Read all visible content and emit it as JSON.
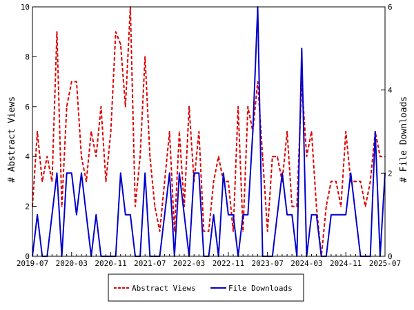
{
  "chart_data": {
    "type": "line",
    "title": "",
    "xlabel": "",
    "ylabel": "# Abstract Views",
    "y2label": "# File Downloads",
    "ylim": [
      0,
      10
    ],
    "y2lim": [
      0,
      6
    ],
    "yticks": [
      "0",
      "2",
      "4",
      "6",
      "8",
      "10"
    ],
    "y2ticks": [
      "0",
      "2",
      "4",
      "6"
    ],
    "xticks": [
      "2019-07",
      "2020-03",
      "2020-11",
      "2021-07",
      "2022-03",
      "2022-11",
      "2023-07",
      "2024-03",
      "2024-11",
      "2025-07"
    ],
    "x_start": "2019-07",
    "x_end": "2025-07",
    "legend_position": "bottom",
    "series": [
      {
        "name": "Abstract Views",
        "axis": "left",
        "color": "#dd0000",
        "style": "dashed",
        "values": [
          2,
          5,
          3,
          4,
          3,
          9,
          2,
          6,
          7,
          7,
          4,
          3,
          5,
          4,
          6,
          3,
          5,
          9,
          8.5,
          6,
          10,
          2,
          4,
          8,
          4,
          2,
          1,
          3,
          5,
          1,
          5,
          2,
          6,
          3,
          5,
          1,
          1,
          3,
          4,
          3,
          3,
          1,
          6,
          1,
          6,
          5,
          7,
          4,
          1,
          4,
          4,
          3,
          5,
          2,
          2,
          7,
          4,
          5,
          2,
          0,
          2,
          3,
          3,
          2,
          5,
          3,
          3,
          3,
          2,
          3,
          5,
          4,
          4
        ]
      },
      {
        "name": "File Downloads",
        "axis": "right",
        "color": "#0000cc",
        "style": "solid",
        "values": [
          0,
          1,
          0,
          0,
          1,
          2,
          0,
          2,
          2,
          1,
          2,
          1,
          0,
          1,
          0,
          0,
          0,
          0,
          2,
          1,
          1,
          0,
          0,
          2,
          0,
          0,
          0,
          1,
          2,
          0,
          2,
          1,
          0,
          2,
          2,
          0,
          0,
          1,
          0,
          2,
          1,
          1,
          0,
          1,
          1,
          3,
          6,
          0,
          0,
          0,
          1,
          2,
          1,
          1,
          0,
          5,
          0,
          1,
          1,
          0,
          0,
          1,
          1,
          1,
          1,
          2,
          1,
          0,
          0,
          0,
          3,
          0,
          2
        ]
      }
    ]
  }
}
